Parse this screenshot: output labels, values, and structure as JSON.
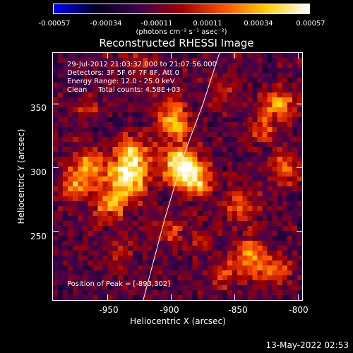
{
  "colorbar": {
    "ticks": [
      "-0.00057",
      "-0.00034",
      "-0.00011",
      "0.00011",
      "0.00034",
      "0.00057"
    ],
    "unit": "(photons cm⁻² s⁻¹ asec⁻²)",
    "colors": [
      "#0000ff",
      "#000020",
      "#400050",
      "#a00000",
      "#ff5000",
      "#ffd000",
      "#ffffff"
    ]
  },
  "title": "Reconstructed RHESSI Image",
  "annotations": {
    "time_range": "29-Jul-2012 21:03:32.000 to 21:07:56.000",
    "detectors": "Detectors: 3F 5F 6F 7F 8F, Att 0",
    "energy": "Energy Range: 12.0 - 25.0 keV",
    "clean": "Clean     Total counts: 4.58E+03",
    "peak": "Position of Peak = [-893,302]"
  },
  "chart_data": {
    "type": "heatmap",
    "title": "Reconstructed RHESSI Image",
    "xlabel": "Heliocentric X (arcsec)",
    "ylabel": "Heliocentric Y (arcsec)",
    "xlim": [
      -993,
      -797
    ],
    "ylim": [
      196,
      390
    ],
    "xticks": [
      -950,
      -900,
      -850,
      -800
    ],
    "xtick_labels": [
      "-950",
      "-900",
      "-850",
      "-800"
    ],
    "yticks": [
      250,
      300,
      350
    ],
    "ytick_labels": [
      "250",
      "300",
      "350"
    ],
    "peak": [
      -893,
      302
    ],
    "colorbar_range": [
      -0.00057,
      0.00057
    ],
    "blobs": [
      {
        "x": -893,
        "y": 302,
        "amp": 1.0,
        "r": 10
      },
      {
        "x": -880,
        "y": 290,
        "amp": 0.7,
        "r": 9
      },
      {
        "x": -935,
        "y": 290,
        "amp": 0.85,
        "r": 11
      },
      {
        "x": -930,
        "y": 310,
        "amp": 0.7,
        "r": 10
      },
      {
        "x": -965,
        "y": 300,
        "amp": 0.65,
        "r": 10
      },
      {
        "x": -975,
        "y": 285,
        "amp": 0.5,
        "r": 8
      },
      {
        "x": -948,
        "y": 270,
        "amp": 0.55,
        "r": 9
      },
      {
        "x": -900,
        "y": 342,
        "amp": 0.6,
        "r": 9
      },
      {
        "x": -895,
        "y": 330,
        "amp": 0.5,
        "r": 7
      },
      {
        "x": -815,
        "y": 350,
        "amp": 0.6,
        "r": 9
      },
      {
        "x": -830,
        "y": 330,
        "amp": 0.45,
        "r": 8
      },
      {
        "x": -810,
        "y": 300,
        "amp": 0.5,
        "r": 9
      },
      {
        "x": -845,
        "y": 270,
        "amp": 0.5,
        "r": 9
      },
      {
        "x": -900,
        "y": 250,
        "amp": 0.4,
        "r": 7
      },
      {
        "x": -875,
        "y": 245,
        "amp": 0.35,
        "r": 6
      },
      {
        "x": -840,
        "y": 230,
        "amp": 0.55,
        "r": 10
      },
      {
        "x": -820,
        "y": 220,
        "amp": 0.5,
        "r": 9
      },
      {
        "x": -860,
        "y": 215,
        "amp": 0.4,
        "r": 7
      },
      {
        "x": -965,
        "y": 345,
        "amp": 0.3,
        "r": 7
      },
      {
        "x": -940,
        "y": 235,
        "amp": 0.25,
        "r": 8
      },
      {
        "x": -925,
        "y": 380,
        "amp": 0.25,
        "r": 8
      },
      {
        "x": -860,
        "y": 360,
        "amp": 0.3,
        "r": 8
      }
    ],
    "limb_curve": [
      [
        -922,
        196
      ],
      [
        -905,
        260
      ],
      [
        -890,
        310
      ],
      [
        -875,
        350
      ],
      [
        -862,
        390
      ]
    ]
  },
  "axes": {
    "xlabel": "Heliocentric X (arcsec)",
    "ylabel": "Heliocentric Y (arcsec)",
    "xticks": [
      "-950",
      "-900",
      "-850",
      "-800"
    ],
    "yticks": [
      "250",
      "300",
      "350"
    ]
  },
  "footer_date": "13-May-2022 02:53"
}
